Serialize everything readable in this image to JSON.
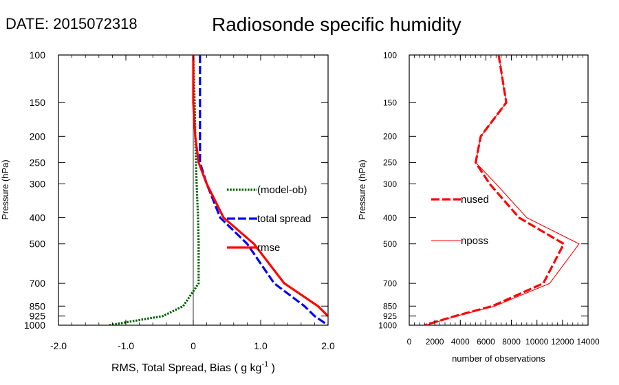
{
  "date_label": "DATE: 2015072318",
  "title": "Radiosonde specific humidity",
  "chart_data": [
    {
      "type": "line",
      "title": "Radiosonde specific humidity",
      "xlabel": "RMS, Total Spread, Bias ( g kg",
      "xlabel_sup": "-1",
      "xlabel_tail": " )",
      "ylabel": "Pressure (hPa)",
      "xlim": [
        -2.0,
        2.0
      ],
      "ylim": [
        1000,
        100
      ],
      "y_scale": "log",
      "x_ticks": [
        "-2.0",
        "-1.0",
        "0",
        "1.0",
        "2.0"
      ],
      "x_tick_values": [
        -2.0,
        -1.0,
        0,
        1.0,
        2.0
      ],
      "y_ticks": [
        100,
        150,
        200,
        250,
        300,
        400,
        500,
        700,
        850,
        925,
        1000
      ],
      "legend_placement": "center-right",
      "series": [
        {
          "name": "(model-ob)",
          "color": "#006400",
          "style": "dotted",
          "points": [
            [
              0.0,
              100
            ],
            [
              0.02,
              150
            ],
            [
              0.03,
              200
            ],
            [
              0.04,
              250
            ],
            [
              0.05,
              300
            ],
            [
              0.07,
              400
            ],
            [
              0.08,
              500
            ],
            [
              0.08,
              700
            ],
            [
              -0.15,
              850
            ],
            [
              -0.45,
              925
            ],
            [
              -1.25,
              1000
            ]
          ]
        },
        {
          "name": "total spread",
          "color": "#0000ff",
          "style": "dashed",
          "points": [
            [
              0.1,
              100
            ],
            [
              0.1,
              150
            ],
            [
              0.1,
              200
            ],
            [
              0.1,
              250
            ],
            [
              0.2,
              300
            ],
            [
              0.4,
              400
            ],
            [
              0.8,
              500
            ],
            [
              1.2,
              700
            ],
            [
              1.65,
              850
            ],
            [
              1.8,
              925
            ],
            [
              2.0,
              1000
            ]
          ]
        },
        {
          "name": "rmse",
          "color": "#ff0000",
          "style": "solid",
          "points": [
            [
              0.0,
              100
            ],
            [
              0.0,
              150
            ],
            [
              0.03,
              200
            ],
            [
              0.08,
              250
            ],
            [
              0.2,
              300
            ],
            [
              0.45,
              400
            ],
            [
              0.9,
              500
            ],
            [
              1.35,
              700
            ],
            [
              1.85,
              850
            ],
            [
              2.0,
              925
            ],
            [
              2.1,
              1000
            ]
          ]
        }
      ]
    },
    {
      "type": "line",
      "xlabel": "number of observations",
      "ylabel": "Pressure (hPa)",
      "xlim": [
        0,
        14000
      ],
      "ylim": [
        1000,
        100
      ],
      "y_scale": "log",
      "x_ticks": [
        "0",
        "2000",
        "4000",
        "6000",
        "8000",
        "10000",
        "12000",
        "14000"
      ],
      "x_tick_values": [
        0,
        2000,
        4000,
        6000,
        8000,
        10000,
        12000,
        14000
      ],
      "y_ticks": [
        100,
        150,
        200,
        250,
        300,
        400,
        500,
        700,
        850,
        925,
        1000
      ],
      "legend_placement": "center-left",
      "series": [
        {
          "name": "nused",
          "color": "#ff0000",
          "style": "dashed",
          "points": [
            [
              7000,
              100
            ],
            [
              7600,
              150
            ],
            [
              5600,
              200
            ],
            [
              5200,
              250
            ],
            [
              6300,
              300
            ],
            [
              8600,
              400
            ],
            [
              12100,
              500
            ],
            [
              10500,
              700
            ],
            [
              6500,
              850
            ],
            [
              3600,
              925
            ],
            [
              1200,
              1000
            ]
          ]
        },
        {
          "name": "nposs",
          "color": "#ff0000",
          "style": "thin",
          "points": [
            [
              7000,
              100
            ],
            [
              7600,
              150
            ],
            [
              5600,
              200
            ],
            [
              5200,
              250
            ],
            [
              6800,
              300
            ],
            [
              9200,
              400
            ],
            [
              13300,
              500
            ],
            [
              11000,
              700
            ],
            [
              6700,
              850
            ],
            [
              3700,
              925
            ],
            [
              1300,
              1000
            ]
          ]
        }
      ]
    }
  ]
}
